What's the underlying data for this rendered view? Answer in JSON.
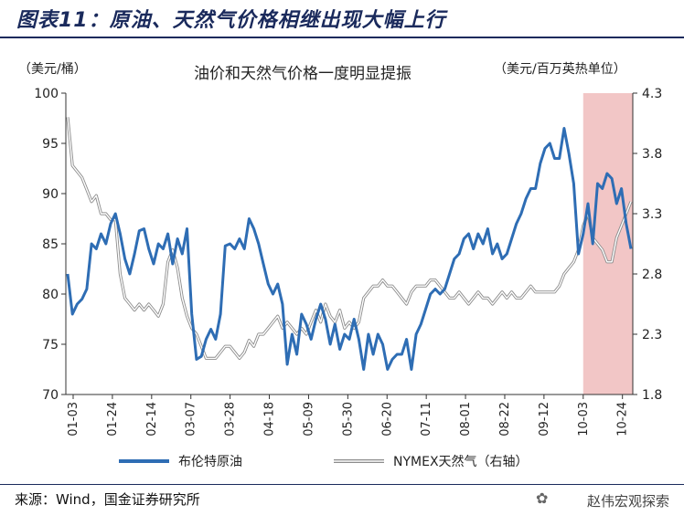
{
  "header": {
    "title": "图表11：原油、天然气价格相继出现大幅上行"
  },
  "footer": {
    "source": "来源：Wind，国金证券研究所",
    "watermark": "赵伟宏观探索"
  },
  "chart_data": {
    "type": "line",
    "title": "油价和天然气价格一度明显提振",
    "y_left_unit": "（美元/桶）",
    "y_right_unit": "（美元/百万英热单位）",
    "y_left_range": [
      70,
      100
    ],
    "y_right_range": [
      1.8,
      4.3
    ],
    "y_left_ticks": [
      "100",
      "95",
      "90",
      "85",
      "80",
      "75",
      "70"
    ],
    "y_right_ticks": [
      "4.3",
      "3.8",
      "3.3",
      "2.8",
      "2.3",
      "1.8"
    ],
    "x_labels": [
      "01-03",
      "01-24",
      "02-14",
      "03-07",
      "03-28",
      "04-18",
      "05-09",
      "05-30",
      "06-20",
      "07-11",
      "08-01",
      "08-22",
      "09-12",
      "10-03",
      "10-24"
    ],
    "highlight": {
      "from": "10-03",
      "to": "end",
      "color": "#f2c6c6"
    },
    "series": [
      {
        "name": "布伦特原油",
        "axis": "left",
        "color": "#2e6db4",
        "values": [
          82,
          78,
          79,
          79.5,
          80.5,
          85,
          84.5,
          86,
          85,
          87,
          88,
          86,
          83.5,
          82,
          84,
          86.3,
          86.5,
          84.5,
          83,
          85,
          84.5,
          86,
          83,
          85.5,
          84,
          86.5,
          78,
          73.5,
          73.8,
          75.5,
          76.5,
          75.5,
          78,
          84.8,
          85,
          84.5,
          85.5,
          84.5,
          87.5,
          86.5,
          85,
          83,
          81,
          80,
          81,
          79,
          73,
          76,
          74,
          78,
          77,
          75.5,
          77.5,
          79,
          77.5,
          75,
          77,
          74.5,
          76,
          75.5,
          77.5,
          75.5,
          72.5,
          76,
          74,
          76,
          75,
          72.5,
          73.5,
          74,
          74,
          75.5,
          72.5,
          76,
          77,
          78.5,
          80,
          80.5,
          80,
          80.5,
          82,
          83.5,
          84,
          85.5,
          86,
          84.5,
          86,
          85,
          86.5,
          84,
          85,
          83.5,
          84,
          85.5,
          87,
          88,
          89.5,
          90.5,
          90.5,
          93,
          94.5,
          95,
          93.5,
          93.5,
          96.5,
          94,
          91,
          84,
          86,
          89,
          85,
          91,
          90.5,
          92,
          91.5,
          89,
          90.5,
          87,
          84.5
        ]
      },
      {
        "name": "NYMEX天然气（右轴）",
        "axis": "right",
        "color": "#a8a8a8",
        "values": [
          4.1,
          3.7,
          3.65,
          3.6,
          3.5,
          3.4,
          3.45,
          3.3,
          3.3,
          3.25,
          3.25,
          2.8,
          2.6,
          2.55,
          2.5,
          2.55,
          2.5,
          2.55,
          2.5,
          2.45,
          2.55,
          2.9,
          3.0,
          2.85,
          2.6,
          2.45,
          2.35,
          2.3,
          2.2,
          2.1,
          2.1,
          2.1,
          2.15,
          2.2,
          2.2,
          2.15,
          2.1,
          2.15,
          2.25,
          2.2,
          2.3,
          2.3,
          2.35,
          2.4,
          2.45,
          2.35,
          2.4,
          2.35,
          2.3,
          2.35,
          2.3,
          2.4,
          2.5,
          2.4,
          2.55,
          2.45,
          2.4,
          2.5,
          2.35,
          2.4,
          2.35,
          2.4,
          2.6,
          2.65,
          2.7,
          2.7,
          2.75,
          2.7,
          2.7,
          2.65,
          2.6,
          2.55,
          2.65,
          2.7,
          2.7,
          2.7,
          2.75,
          2.75,
          2.7,
          2.65,
          2.6,
          2.6,
          2.65,
          2.6,
          2.55,
          2.6,
          2.65,
          2.6,
          2.6,
          2.55,
          2.6,
          2.65,
          2.6,
          2.65,
          2.6,
          2.6,
          2.65,
          2.7,
          2.65,
          2.65,
          2.65,
          2.65,
          2.65,
          2.7,
          2.8,
          2.85,
          2.9,
          3.0,
          3.2,
          3.3,
          3.1,
          3.05,
          3.0,
          2.9,
          2.9,
          3.1,
          3.2,
          3.3,
          3.4
        ]
      }
    ]
  }
}
